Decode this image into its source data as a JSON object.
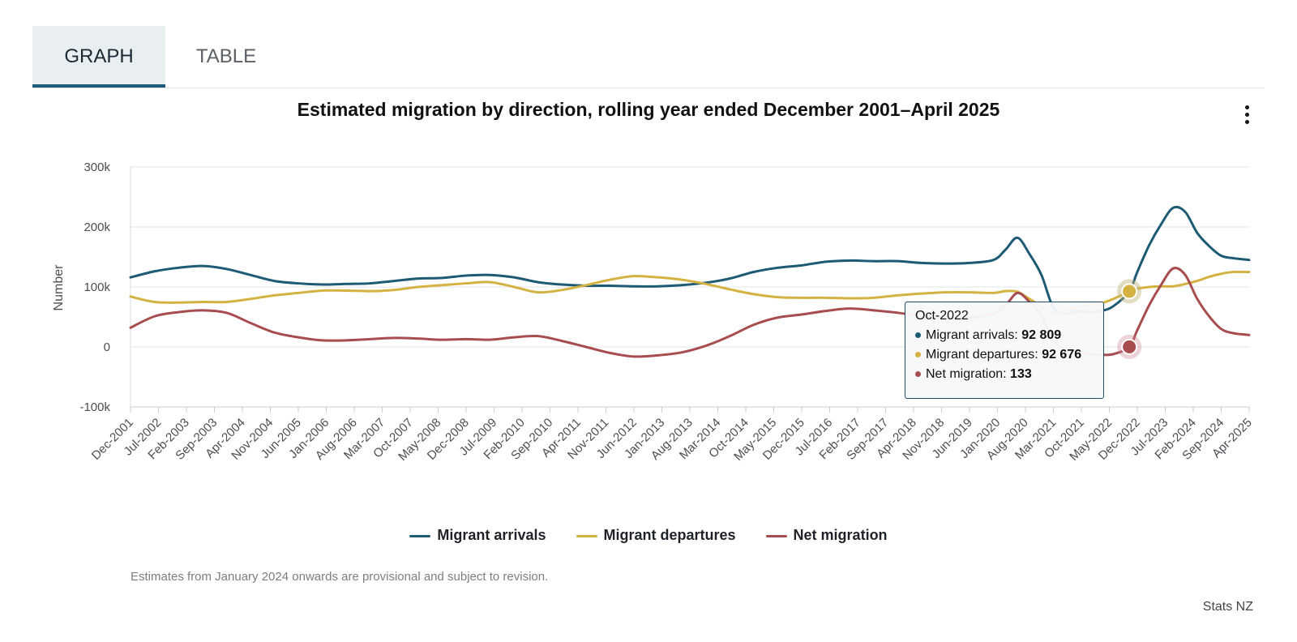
{
  "tabs": [
    {
      "label": "GRAPH",
      "active": true
    },
    {
      "label": "TABLE",
      "active": false
    }
  ],
  "menu": {
    "icon": "kebab-menu-icon"
  },
  "chart_data": {
    "type": "line",
    "title": "Estimated migration by direction, rolling year ended December 2001–April 2025",
    "xlabel": "",
    "ylabel": "Number",
    "ylim": [
      -100000,
      300000
    ],
    "yticks": [
      "-100k",
      "0",
      "100k",
      "200k",
      "300k"
    ],
    "grid": true,
    "legend_position": "bottom",
    "x_tick_labels": [
      "Dec-2001",
      "Jul-2002",
      "Feb-2003",
      "Sep-2003",
      "Apr-2004",
      "Nov-2004",
      "Jun-2005",
      "Jan-2006",
      "Aug-2006",
      "Mar-2007",
      "Oct-2007",
      "May-2008",
      "Dec-2008",
      "Jul-2009",
      "Feb-2010",
      "Sep-2010",
      "Apr-2011",
      "Nov-2011",
      "Jun-2012",
      "Jan-2013",
      "Aug-2013",
      "Mar-2014",
      "Oct-2014",
      "May-2015",
      "Dec-2015",
      "Jul-2016",
      "Feb-2017",
      "Sep-2017",
      "Apr-2018",
      "Nov-2018",
      "Jun-2019",
      "Jan-2020",
      "Aug-2020",
      "Mar-2021",
      "Oct-2021",
      "May-2022",
      "Dec-2022",
      "Jul-2023",
      "Feb-2024",
      "Sep-2024",
      "Apr-2025"
    ],
    "x": [
      "Dec-2001",
      "Jun-2002",
      "Dec-2002",
      "Jun-2003",
      "Dec-2003",
      "Jun-2004",
      "Dec-2004",
      "Jun-2005",
      "Dec-2005",
      "Jun-2006",
      "Dec-2006",
      "Jun-2007",
      "Dec-2007",
      "Jun-2008",
      "Dec-2008",
      "Jun-2009",
      "Dec-2009",
      "Jun-2010",
      "Dec-2010",
      "Jun-2011",
      "Dec-2011",
      "Jun-2012",
      "Dec-2012",
      "Jun-2013",
      "Dec-2013",
      "Jun-2014",
      "Dec-2014",
      "Jun-2015",
      "Dec-2015",
      "Jun-2016",
      "Dec-2016",
      "Jun-2017",
      "Dec-2017",
      "Jun-2018",
      "Dec-2018",
      "Jun-2019",
      "Dec-2019",
      "Mar-2020",
      "Jun-2020",
      "Sep-2020",
      "Dec-2020",
      "Mar-2021",
      "Jun-2021",
      "Sep-2021",
      "Dec-2021",
      "Mar-2022",
      "Jun-2022",
      "Oct-2022",
      "Dec-2022",
      "Mar-2023",
      "Jun-2023",
      "Sep-2023",
      "Dec-2023",
      "Mar-2024",
      "Jun-2024",
      "Sep-2024",
      "Dec-2024",
      "Apr-2025"
    ],
    "series": [
      {
        "name": "Migrant arrivals",
        "color": "#1d5a73",
        "values": [
          116000,
          126000,
          132000,
          135000,
          130000,
          120000,
          110000,
          106000,
          104000,
          105000,
          106000,
          110000,
          114000,
          115000,
          119000,
          120000,
          116000,
          108000,
          104000,
          102000,
          102000,
          101000,
          101000,
          103000,
          107000,
          114000,
          125000,
          132000,
          136000,
          142000,
          144000,
          143000,
          143000,
          140000,
          139000,
          140000,
          145000,
          162000,
          182000,
          155000,
          120000,
          65000,
          55000,
          60000,
          58000,
          60000,
          68000,
          92809,
          125000,
          170000,
          205000,
          232000,
          225000,
          190000,
          168000,
          152000,
          148000,
          145000
        ]
      },
      {
        "name": "Migrant departures",
        "color": "#d4b242",
        "values": [
          84000,
          75000,
          74000,
          75000,
          75000,
          80000,
          86000,
          90000,
          94000,
          94000,
          93000,
          95000,
          100000,
          103000,
          106000,
          108000,
          100000,
          91000,
          95000,
          103000,
          112000,
          118000,
          116000,
          112000,
          105000,
          96000,
          88000,
          83000,
          82000,
          82000,
          81000,
          82000,
          86000,
          89000,
          91000,
          91000,
          90000,
          93000,
          92000,
          80000,
          68000,
          55000,
          60000,
          66000,
          70000,
          73000,
          80000,
          92676,
          97000,
          100000,
          101000,
          101000,
          105000,
          110000,
          117000,
          122000,
          125000,
          125000
        ]
      },
      {
        "name": "Net migration",
        "color": "#a84d4f",
        "values": [
          32000,
          51000,
          58000,
          61000,
          57000,
          40000,
          24000,
          16000,
          11000,
          11000,
          13000,
          15000,
          14000,
          12000,
          13000,
          12000,
          16000,
          18000,
          10000,
          0,
          -10000,
          -16000,
          -14000,
          -9000,
          2000,
          18000,
          37000,
          49000,
          54000,
          60000,
          64000,
          61000,
          57000,
          51000,
          48000,
          49000,
          55000,
          69000,
          90000,
          75000,
          52000,
          10000,
          -5000,
          -6000,
          -12000,
          -13000,
          -12000,
          133,
          28000,
          70000,
          104000,
          131000,
          120000,
          80000,
          51000,
          30000,
          23000,
          20000
        ]
      }
    ],
    "tooltip": {
      "date": "Oct-2022",
      "rows": [
        {
          "label": "Migrant arrivals: ",
          "value": "92 809",
          "color": "#1d5a73"
        },
        {
          "label": "Migrant departures: ",
          "value": "92 676",
          "color": "#d4b242"
        },
        {
          "label": "Net migration: ",
          "value": "133",
          "color": "#a84d4f"
        }
      ]
    }
  },
  "legend": [
    {
      "label": "Migrant arrivals",
      "color": "#1d5a73"
    },
    {
      "label": "Migrant departures",
      "color": "#d4b242"
    },
    {
      "label": "Net migration",
      "color": "#a84d4f"
    }
  ],
  "footnote": "Estimates from January 2024 onwards are provisional and subject to revision.",
  "credit": "Stats NZ"
}
